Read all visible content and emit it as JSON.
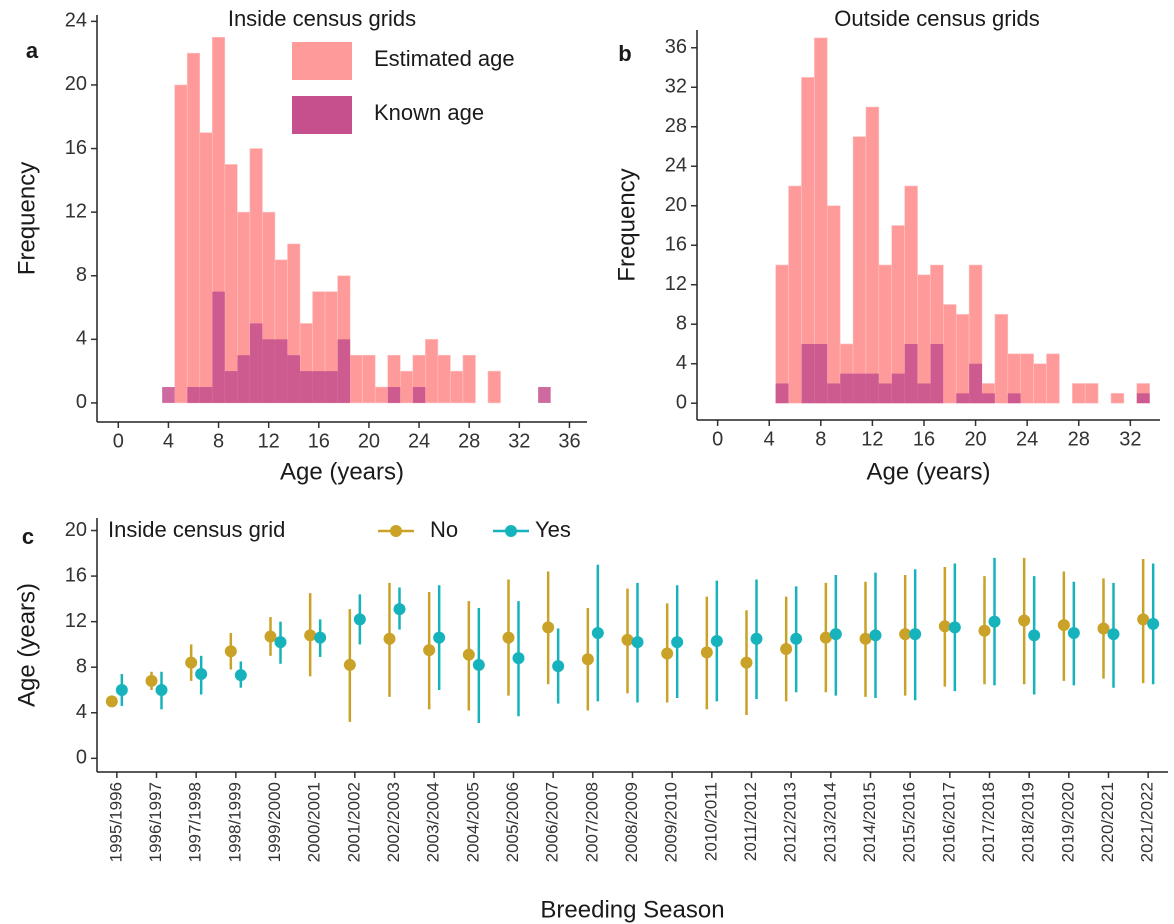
{
  "chart_data": [
    {
      "type": "histogram",
      "panel_label": "a",
      "title": "Inside census grids",
      "xlabel": "Age (years)",
      "ylabel": "Frequency",
      "bins": [
        3.5,
        4.5,
        5.5,
        6.5,
        7.5,
        8.5,
        9.5,
        10.5,
        11.5,
        12.5,
        13.5,
        14.5,
        15.5,
        16.5,
        17.5,
        18.5,
        19.5,
        20.5,
        21.5,
        22.5,
        23.5,
        24.5,
        25.5,
        26.5,
        27.5,
        28.5,
        29.5,
        30.5,
        31.5,
        32.5,
        33.5,
        34.5
      ],
      "series": [
        {
          "name": "Estimated age",
          "color": "#ff9a9a",
          "values": [
            0,
            20,
            22,
            17,
            23,
            15,
            12,
            16,
            12,
            9,
            10,
            5,
            7,
            7,
            8,
            3,
            3,
            1,
            3,
            2,
            3,
            4,
            3,
            2,
            3,
            0,
            2,
            0,
            0,
            0,
            0
          ]
        },
        {
          "name": "Known age",
          "color": "#c6508e",
          "values": [
            1,
            0,
            1,
            1,
            7,
            2,
            3,
            5,
            4,
            4,
            3,
            2,
            2,
            2,
            4,
            0,
            0,
            0,
            1,
            0,
            1,
            0,
            0,
            0,
            0,
            0,
            0,
            0,
            0,
            0,
            1
          ]
        }
      ],
      "xlim": [
        -1.7,
        37.4
      ],
      "xticks": [
        0,
        4,
        8,
        12,
        16,
        20,
        24,
        28,
        32,
        36
      ],
      "ylim": [
        -1.2,
        24.4
      ],
      "yticks": [
        0,
        4,
        8,
        12,
        16,
        20,
        24
      ],
      "legend": true
    },
    {
      "type": "histogram",
      "panel_label": "b",
      "title": "Outside  census grids",
      "xlabel": "Age (years)",
      "ylabel": "Frequency",
      "bins": [
        4.5,
        5.5,
        6.5,
        7.5,
        8.5,
        9.5,
        10.5,
        11.5,
        12.5,
        13.5,
        14.5,
        15.5,
        16.5,
        17.5,
        18.5,
        19.5,
        20.5,
        21.5,
        22.5,
        23.5,
        24.5,
        25.5,
        26.5,
        27.5,
        28.5,
        29.5,
        30.5,
        31.5,
        32.5,
        33.5
      ],
      "series": [
        {
          "color": "#ff9a9a",
          "values": [
            14,
            22,
            33,
            37,
            20,
            6,
            27,
            30,
            14,
            18,
            22,
            13,
            14,
            10,
            9,
            14,
            2,
            9,
            5,
            5,
            4,
            5,
            0,
            2,
            2,
            0,
            1,
            0,
            2
          ]
        },
        {
          "color": "#c6508e",
          "values": [
            2,
            0,
            6,
            6,
            2,
            3,
            3,
            3,
            2,
            3,
            6,
            2,
            6,
            0,
            1,
            4,
            1,
            0,
            1,
            0,
            0,
            0,
            0,
            0,
            0,
            0,
            0,
            0,
            1
          ]
        }
      ],
      "xlim": [
        -1.6,
        34.3
      ],
      "xticks": [
        0,
        4,
        8,
        12,
        16,
        20,
        24,
        28,
        32
      ],
      "ylim": [
        -1.7,
        37.8
      ],
      "yticks": [
        0,
        4,
        8,
        12,
        16,
        20,
        24,
        28,
        32,
        36
      ],
      "legend": false
    },
    {
      "type": "pointrange",
      "panel_label": "c",
      "xlabel": "Breeding Season",
      "ylabel": "Age (years)",
      "legend_title": "Inside census grid",
      "categories": [
        "1995/1996",
        "1996/1997",
        "1997/1998",
        "1998/1999",
        "1999/2000",
        "2000/2001",
        "2001/2002",
        "2002/2003",
        "2003/2004",
        "2004/2005",
        "2005/2006",
        "2006/2007",
        "2007/2008",
        "2008/2009",
        "2009/2010",
        "2010/2011",
        "2011/2012",
        "2012/2013",
        "2013/2014",
        "2014/2015",
        "2015/2016",
        "2016/2017",
        "2017/2018",
        "2018/2019",
        "2019/2020",
        "2020/2021",
        "2021/2022"
      ],
      "series": [
        {
          "name": "No",
          "color": "#c9a227",
          "values": [
            5.0,
            6.8,
            8.4,
            9.4,
            10.7,
            10.8,
            8.2,
            10.5,
            9.5,
            9.1,
            10.6,
            11.5,
            8.7,
            10.4,
            9.2,
            9.3,
            8.4,
            9.6,
            10.6,
            10.5,
            10.9,
            11.6,
            11.2,
            12.1,
            11.7,
            11.4,
            12.2
          ],
          "lower": [
            5.0,
            6.0,
            6.8,
            7.8,
            9.0,
            7.2,
            3.2,
            5.4,
            4.3,
            4.2,
            5.5,
            6.5,
            4.2,
            5.7,
            4.9,
            4.3,
            3.8,
            5.0,
            5.8,
            5.4,
            5.5,
            6.3,
            6.5,
            6.5,
            6.8,
            7.0,
            6.6
          ],
          "upper": [
            5.0,
            7.6,
            10.0,
            11.0,
            12.4,
            14.5,
            13.1,
            15.4,
            14.6,
            13.8,
            15.7,
            16.4,
            13.2,
            14.9,
            13.6,
            14.2,
            13.0,
            14.2,
            15.4,
            15.5,
            16.1,
            16.8,
            16.0,
            17.6,
            16.4,
            15.8,
            17.5
          ]
        },
        {
          "name": "Yes",
          "color": "#17b3bd",
          "values": [
            6.0,
            6.0,
            7.4,
            7.3,
            10.2,
            10.6,
            12.2,
            13.1,
            10.6,
            8.2,
            8.8,
            8.1,
            11.0,
            10.2,
            10.2,
            10.3,
            10.5,
            10.5,
            10.9,
            10.8,
            10.9,
            11.5,
            12.0,
            10.8,
            11.0,
            10.9,
            11.8
          ],
          "lower": [
            4.6,
            4.3,
            5.6,
            6.2,
            8.3,
            8.9,
            10.0,
            11.3,
            6.0,
            3.1,
            3.7,
            4.8,
            5.0,
            4.9,
            5.3,
            5.0,
            5.2,
            5.8,
            5.5,
            5.3,
            5.1,
            5.9,
            6.4,
            5.6,
            6.4,
            6.2,
            6.5
          ],
          "upper": [
            7.4,
            7.6,
            9.0,
            8.5,
            12.0,
            12.2,
            14.4,
            15.0,
            15.2,
            13.2,
            13.8,
            11.4,
            17.0,
            15.4,
            15.2,
            15.6,
            15.7,
            15.1,
            16.1,
            16.3,
            16.6,
            17.1,
            17.6,
            16.0,
            15.5,
            15.4,
            17.1
          ]
        }
      ],
      "ylim": [
        -1.2,
        21.1
      ],
      "yticks": [
        0,
        4,
        8,
        12,
        16,
        20
      ]
    }
  ]
}
